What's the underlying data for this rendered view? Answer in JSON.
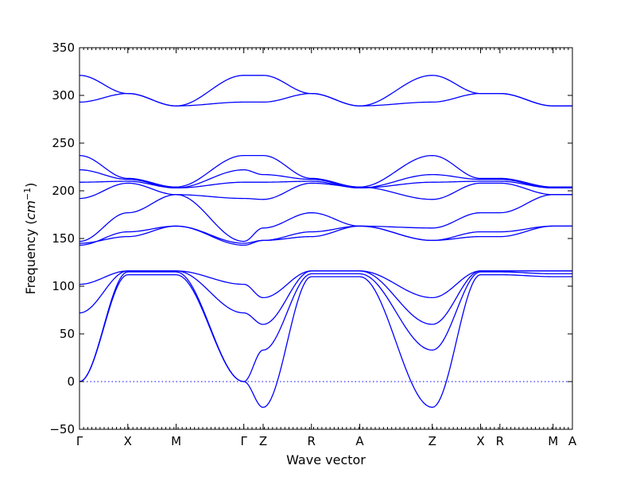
{
  "chart_data": {
    "type": "line",
    "title": "",
    "xlabel": "Wave vector",
    "ylabel_prefix": "Frequency (",
    "ylabel_unit": "cm",
    "ylabel_exp": "−1",
    "ylabel_suffix": ")",
    "ylim": [
      -50,
      350
    ],
    "yticks": [
      -50,
      0,
      50,
      100,
      150,
      200,
      250,
      300,
      350
    ],
    "xlim": [
      0,
      10.2
    ],
    "high_symmetry_points": [
      {
        "label": "Γ",
        "x": 0.0
      },
      {
        "label": "X",
        "x": 1.0
      },
      {
        "label": "M",
        "x": 2.0
      },
      {
        "label": "Γ",
        "x": 3.4
      },
      {
        "label": "Z",
        "x": 3.8
      },
      {
        "label": "R",
        "x": 4.8
      },
      {
        "label": "A",
        "x": 5.8
      },
      {
        "label": "Z",
        "x": 7.3
      },
      {
        "label": "X",
        "x": 8.3
      },
      {
        "label": "R",
        "x": 8.7
      },
      {
        "label": "M",
        "x": 9.8
      },
      {
        "label": "A",
        "x": 10.2
      }
    ],
    "zero_line": 0,
    "grid": false,
    "color": "#0000ff",
    "series": [
      {
        "x": [
          0,
          1,
          2,
          3.4,
          3.8,
          4.8,
          5.8,
          7.3,
          8.3,
          8.7,
          9.8,
          10.2
        ],
        "y": [
          0,
          112,
          112,
          0,
          -27,
          110,
          110,
          -27,
          112,
          112,
          110,
          110
        ]
      },
      {
        "x": [
          0,
          1,
          2,
          3.4,
          3.8,
          4.8,
          5.8,
          7.3,
          8.3,
          8.7,
          9.8,
          10.2
        ],
        "y": [
          0,
          115,
          115,
          0,
          33,
          113,
          113,
          33,
          115,
          115,
          113,
          113
        ]
      },
      {
        "x": [
          0,
          1,
          2,
          3.4,
          3.8,
          4.8,
          5.8,
          7.3,
          8.3,
          8.7,
          9.8,
          10.2
        ],
        "y": [
          72,
          116,
          116,
          72,
          60,
          116,
          116,
          60,
          116,
          116,
          116,
          116
        ]
      },
      {
        "x": [
          0,
          1,
          2,
          3.4,
          3.8,
          4.8,
          5.8,
          7.3,
          8.3,
          8.7,
          9.8,
          10.2
        ],
        "y": [
          102,
          116,
          116,
          102,
          88,
          116,
          116,
          88,
          116,
          116,
          116,
          116
        ]
      },
      {
        "x": [
          0,
          1,
          2,
          3.4,
          3.8,
          4.8,
          5.8,
          7.3,
          8.3,
          8.7,
          9.8,
          10.2
        ],
        "y": [
          143,
          157,
          163,
          143,
          148,
          157,
          163,
          148,
          157,
          157,
          163,
          163
        ]
      },
      {
        "x": [
          0,
          1,
          2,
          3.4,
          3.8,
          4.8,
          5.8,
          7.3,
          8.3,
          8.7,
          9.8,
          10.2
        ],
        "y": [
          145,
          152,
          163,
          145,
          148,
          152,
          163,
          148,
          152,
          152,
          163,
          163
        ]
      },
      {
        "x": [
          0,
          1,
          2,
          3.4,
          3.8,
          4.8,
          5.8,
          7.3,
          8.3,
          8.7,
          9.8,
          10.2
        ],
        "y": [
          147,
          177,
          196,
          147,
          161,
          177,
          163,
          161,
          177,
          177,
          196,
          196
        ]
      },
      {
        "x": [
          0,
          1,
          2,
          3.4,
          3.8,
          4.8,
          5.8,
          7.3,
          8.3,
          8.7,
          9.8,
          10.2
        ],
        "y": [
          192,
          208,
          196,
          192,
          191,
          208,
          204,
          191,
          208,
          208,
          196,
          196
        ]
      },
      {
        "x": [
          0,
          1,
          2,
          3.4,
          3.8,
          4.8,
          5.8,
          7.3,
          8.3,
          8.7,
          9.8,
          10.2
        ],
        "y": [
          209,
          210,
          203,
          209,
          209,
          210,
          203,
          209,
          210,
          210,
          203,
          203
        ]
      },
      {
        "x": [
          0,
          1,
          2,
          3.4,
          3.8,
          4.8,
          5.8,
          7.3,
          8.3,
          8.7,
          9.8,
          10.2
        ],
        "y": [
          222,
          212,
          203,
          222,
          217,
          212,
          203,
          217,
          212,
          212,
          203,
          203
        ]
      },
      {
        "x": [
          0,
          1,
          2,
          3.4,
          3.8,
          4.8,
          5.8,
          7.3,
          8.3,
          8.7,
          9.8,
          10.2
        ],
        "y": [
          237,
          213,
          204,
          237,
          237,
          213,
          204,
          237,
          213,
          213,
          204,
          204
        ]
      },
      {
        "x": [
          0,
          1,
          2,
          3.4,
          3.8,
          4.8,
          5.8,
          7.3,
          8.3,
          8.7,
          9.8,
          10.2
        ],
        "y": [
          293,
          302,
          289,
          293,
          293,
          302,
          289,
          293,
          302,
          302,
          289,
          289
        ]
      },
      {
        "x": [
          0,
          1,
          2,
          3.4,
          3.8,
          4.8,
          5.8,
          7.3,
          8.3,
          8.7,
          9.8,
          10.2
        ],
        "y": [
          321,
          302,
          289,
          321,
          321,
          302,
          289,
          321,
          302,
          302,
          289,
          289
        ]
      }
    ]
  }
}
